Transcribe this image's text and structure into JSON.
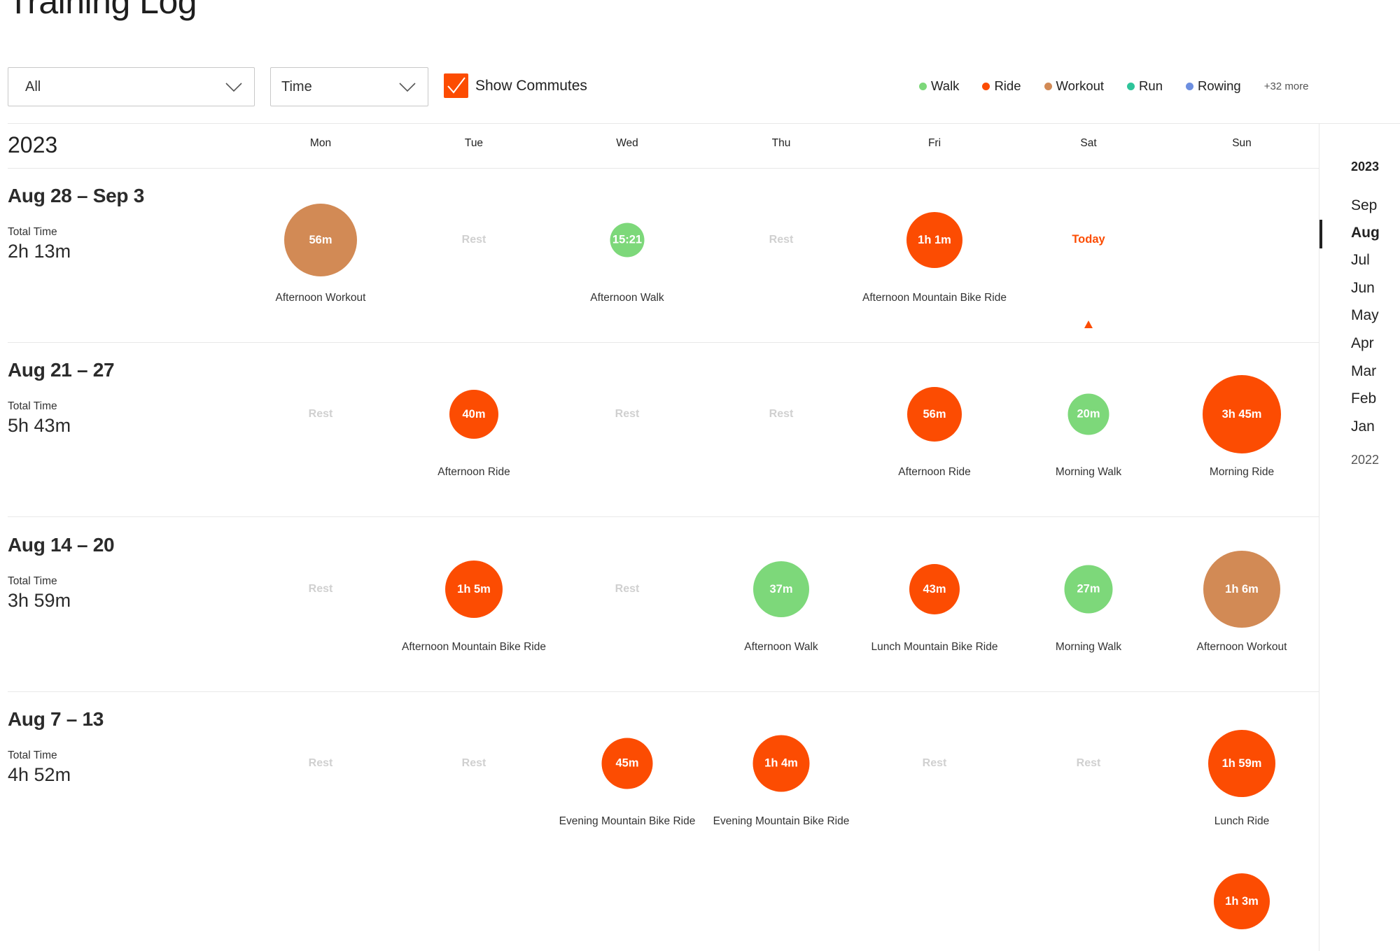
{
  "page": {
    "title": "Training Log"
  },
  "filters": {
    "sport": {
      "value": "All"
    },
    "metric": {
      "value": "Time"
    },
    "commutes": {
      "label": "Show Commutes",
      "checked": true
    }
  },
  "legend": {
    "items": [
      {
        "label": "Walk",
        "color": "#7dd87a"
      },
      {
        "label": "Ride",
        "color": "#fc4c02"
      },
      {
        "label": "Workout",
        "color": "#d28a55"
      },
      {
        "label": "Run",
        "color": "#2ec49a"
      },
      {
        "label": "Rowing",
        "color": "#6d8fe0"
      }
    ],
    "more": "+32 more"
  },
  "header": {
    "year": "2023",
    "days": [
      "Mon",
      "Tue",
      "Wed",
      "Thu",
      "Fri",
      "Sat",
      "Sun"
    ]
  },
  "labels": {
    "total_time": "Total Time",
    "rest": "Rest",
    "today": "Today"
  },
  "colors": {
    "walk": "#7dd87a",
    "ride": "#fc4c02",
    "workout": "#d28a55"
  },
  "weeks": [
    {
      "range": "Aug 28 – Sep 3",
      "total": "2h 13m",
      "days": [
        {
          "type": "activity",
          "sport": "workout",
          "label": "56m",
          "name": "Afternoon Workout",
          "diameter": 104
        },
        {
          "type": "rest"
        },
        {
          "type": "activity",
          "sport": "walk",
          "label": "15:21",
          "name": "Afternoon Walk",
          "diameter": 49
        },
        {
          "type": "rest"
        },
        {
          "type": "activity",
          "sport": "ride",
          "label": "1h 1m",
          "name": "Afternoon Mountain Bike Ride",
          "diameter": 80
        },
        {
          "type": "today"
        },
        {
          "type": "empty"
        }
      ]
    },
    {
      "range": "Aug 21 – 27",
      "total": "5h 43m",
      "days": [
        {
          "type": "rest"
        },
        {
          "type": "activity",
          "sport": "ride",
          "label": "40m",
          "name": "Afternoon Ride",
          "diameter": 70
        },
        {
          "type": "rest"
        },
        {
          "type": "rest"
        },
        {
          "type": "activity",
          "sport": "ride",
          "label": "56m",
          "name": "Afternoon Ride",
          "diameter": 78
        },
        {
          "type": "activity",
          "sport": "walk",
          "label": "20m",
          "name": "Morning Walk",
          "diameter": 59
        },
        {
          "type": "activity",
          "sport": "ride",
          "label": "3h 45m",
          "name": "Morning Ride",
          "diameter": 112
        }
      ]
    },
    {
      "range": "Aug 14 – 20",
      "total": "3h 59m",
      "days": [
        {
          "type": "rest"
        },
        {
          "type": "activity",
          "sport": "ride",
          "label": "1h 5m",
          "name": "Afternoon Mountain Bike Ride",
          "diameter": 82
        },
        {
          "type": "rest"
        },
        {
          "type": "activity",
          "sport": "walk",
          "label": "37m",
          "name": "Afternoon Walk",
          "diameter": 80
        },
        {
          "type": "activity",
          "sport": "ride",
          "label": "43m",
          "name": "Lunch Mountain Bike Ride",
          "diameter": 72
        },
        {
          "type": "activity",
          "sport": "walk",
          "label": "27m",
          "name": "Morning Walk",
          "diameter": 69
        },
        {
          "type": "activity",
          "sport": "workout",
          "label": "1h 6m",
          "name": "Afternoon Workout",
          "diameter": 110
        }
      ]
    },
    {
      "range": "Aug 7 – 13",
      "total": "4h 52m",
      "days": [
        {
          "type": "rest"
        },
        {
          "type": "rest"
        },
        {
          "type": "activity",
          "sport": "ride",
          "label": "45m",
          "name": "Evening Mountain Bike Ride",
          "diameter": 73
        },
        {
          "type": "activity",
          "sport": "ride",
          "label": "1h 4m",
          "name": "Evening Mountain Bike Ride",
          "diameter": 81
        },
        {
          "type": "rest"
        },
        {
          "type": "rest"
        },
        {
          "type": "activity",
          "sport": "ride",
          "label": "1h 59m",
          "name": "Lunch Ride",
          "diameter": 96
        }
      ]
    }
  ],
  "extra_activity": {
    "label": "1h 3m",
    "sport": "ride"
  },
  "nav": {
    "current_year": "2023",
    "months": [
      "Sep",
      "Aug",
      "Jul",
      "Jun",
      "May",
      "Apr",
      "Mar",
      "Feb",
      "Jan"
    ],
    "active_month": "Aug",
    "previous_year": "2022"
  }
}
